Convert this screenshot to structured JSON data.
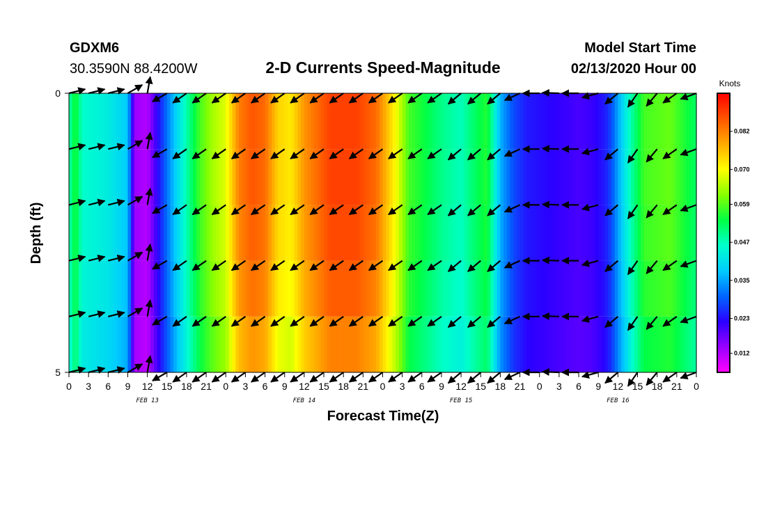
{
  "header": {
    "station": "GDXM6",
    "coords": "30.3590N 88.4200W",
    "title": "2-D Currents Speed-Magnitude",
    "model_label": "Model Start Time",
    "model_time": "02/13/2020 Hour 00"
  },
  "chart_data": {
    "type": "heatmap",
    "title": "2-D Currents Speed-Magnitude",
    "xlabel": "Forecast Time(Z)",
    "ylabel": "Depth (ft)",
    "x_tick_labels": [
      "0",
      "3",
      "6",
      "9",
      "12",
      "15",
      "18",
      "21",
      "0",
      "3",
      "6",
      "9",
      "12",
      "15",
      "18",
      "21",
      "0",
      "3",
      "6",
      "9",
      "12",
      "15",
      "18",
      "21",
      "0",
      "3",
      "6",
      "9",
      "12",
      "15",
      "18",
      "21",
      "0"
    ],
    "x_hours": [
      0,
      3,
      6,
      9,
      12,
      15,
      18,
      21,
      24,
      27,
      30,
      33,
      36,
      39,
      42,
      45,
      48,
      51,
      54,
      57,
      60,
      63,
      66,
      69,
      72,
      75,
      78,
      81,
      84,
      87,
      90,
      93,
      96
    ],
    "xlim_hours": [
      0,
      96
    ],
    "date_labels": [
      {
        "label": "FEB 13",
        "hour": 12
      },
      {
        "label": "FEB 14",
        "hour": 36
      },
      {
        "label": "FEB 15",
        "hour": 60
      },
      {
        "label": "FEB 16",
        "hour": 84
      }
    ],
    "y_tick_labels": [
      "0",
      "5"
    ],
    "ylim": [
      0,
      5
    ],
    "depth_levels": [
      0,
      1,
      2,
      3,
      4,
      5
    ],
    "colorbar": {
      "unit": "Knots",
      "tick_labels": [
        "0.012",
        "0.023",
        "0.035",
        "0.047",
        "0.059",
        "0.070",
        "0.082"
      ],
      "range": [
        0.006,
        0.094
      ],
      "colors": [
        "#ff00ff",
        "#9900ff",
        "#2b00ff",
        "#0066ff",
        "#00ccff",
        "#00ffcc",
        "#00ff44",
        "#88ff00",
        "#ffff00",
        "#ffaa00",
        "#ff5500",
        "#ff0000"
      ]
    },
    "speed_keyframes": [
      [
        0,
        0.047
      ],
      [
        1,
        0.056
      ],
      [
        2,
        0.046
      ],
      [
        6,
        0.043
      ],
      [
        9,
        0.038
      ],
      [
        10,
        0.014
      ],
      [
        12,
        0.012
      ],
      [
        14,
        0.025
      ],
      [
        16,
        0.037
      ],
      [
        18,
        0.048
      ],
      [
        20,
        0.058
      ],
      [
        22,
        0.064
      ],
      [
        24,
        0.068
      ],
      [
        25,
        0.075
      ],
      [
        26,
        0.082
      ],
      [
        28,
        0.086
      ],
      [
        30,
        0.084
      ],
      [
        32,
        0.074
      ],
      [
        34,
        0.072
      ],
      [
        36,
        0.08
      ],
      [
        40,
        0.088
      ],
      [
        44,
        0.088
      ],
      [
        47,
        0.084
      ],
      [
        50,
        0.07
      ],
      [
        52,
        0.058
      ],
      [
        54,
        0.055
      ],
      [
        57,
        0.05
      ],
      [
        60,
        0.047
      ],
      [
        62,
        0.052
      ],
      [
        64,
        0.056
      ],
      [
        65,
        0.046
      ],
      [
        66,
        0.036
      ],
      [
        68,
        0.028
      ],
      [
        70,
        0.024
      ],
      [
        74,
        0.022
      ],
      [
        78,
        0.02
      ],
      [
        80,
        0.021
      ],
      [
        82,
        0.024
      ],
      [
        83,
        0.028
      ],
      [
        84,
        0.035
      ],
      [
        86,
        0.048
      ],
      [
        88,
        0.058
      ],
      [
        92,
        0.06
      ],
      [
        94,
        0.056
      ],
      [
        96,
        0.052
      ]
    ],
    "speed_depth_factor": [
      1.0,
      1.0,
      0.99,
      0.97,
      0.93,
      0.9
    ],
    "arrow_hours": [
      0,
      3,
      6,
      9,
      12,
      15,
      18,
      21,
      24,
      27,
      30,
      33,
      36,
      39,
      42,
      45,
      48,
      51,
      54,
      57,
      60,
      63,
      66,
      69,
      72,
      75,
      78,
      81,
      84,
      87,
      90,
      93,
      96
    ],
    "arrow_direction_deg": [
      14,
      14,
      14,
      30,
      80,
      210,
      215,
      215,
      215,
      215,
      215,
      215,
      215,
      215,
      215,
      215,
      215,
      215,
      215,
      215,
      220,
      220,
      220,
      205,
      180,
      178,
      180,
      195,
      220,
      235,
      230,
      215,
      200
    ]
  }
}
